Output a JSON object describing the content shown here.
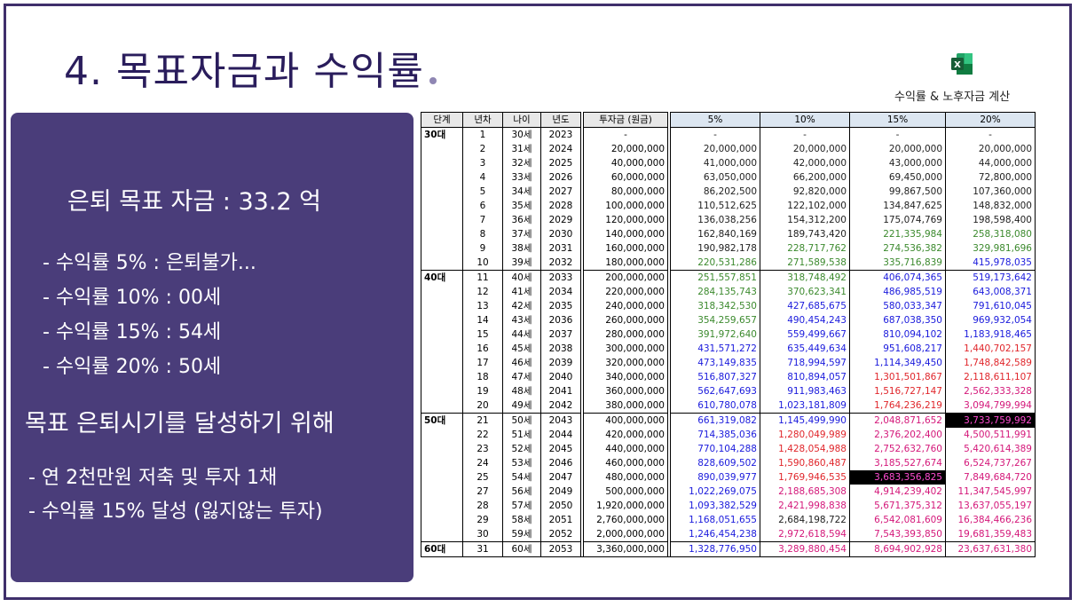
{
  "slide": {
    "title": "4. 목표자금과 수익률",
    "excel_label": "수익률 & 노후자금 계산",
    "excel_icon": "excel-icon",
    "colors": {
      "panel": "#4a3d7a",
      "title": "#2a1d5c",
      "green": "#3c8a2e",
      "blue": "#1a1adc",
      "red": "#e0262b",
      "magenta": "#d4187a"
    }
  },
  "panel": {
    "goal": "은퇴 목표 자금 : 33.2 억",
    "rates": [
      "- 수익률 5% : 은퇴불가...",
      "- 수익률 10% : 00세",
      "- 수익률 15% : 54세",
      "- 수익률 20% : 50세"
    ],
    "condition": "목표 은퇴시기를 달성하기 위해",
    "plans": [
      "- 연 2천만원 저축 및 투자 1채",
      "- 수익률 15% 달성 (잃지않는 투자)"
    ]
  },
  "table": {
    "headers": [
      "단계",
      "년차",
      "나이",
      "년도",
      "투자금 (원금)",
      "5%",
      "10%",
      "15%",
      "20%"
    ],
    "rows": [
      {
        "stage": "30대",
        "year": "1",
        "age": "30세",
        "cal": "2023",
        "principal": "-",
        "r5": "-",
        "r10": "-",
        "r15": "-",
        "r20": "-",
        "c": [
          "k",
          "k",
          "k",
          "k"
        ]
      },
      {
        "stage": "",
        "year": "2",
        "age": "31세",
        "cal": "2024",
        "principal": "20,000,000",
        "r5": "20,000,000",
        "r10": "20,000,000",
        "r15": "20,000,000",
        "r20": "20,000,000",
        "c": [
          "k",
          "k",
          "k",
          "k"
        ]
      },
      {
        "stage": "",
        "year": "3",
        "age": "32세",
        "cal": "2025",
        "principal": "40,000,000",
        "r5": "41,000,000",
        "r10": "42,000,000",
        "r15": "43,000,000",
        "r20": "44,000,000",
        "c": [
          "k",
          "k",
          "k",
          "k"
        ]
      },
      {
        "stage": "",
        "year": "4",
        "age": "33세",
        "cal": "2026",
        "principal": "60,000,000",
        "r5": "63,050,000",
        "r10": "66,200,000",
        "r15": "69,450,000",
        "r20": "72,800,000",
        "c": [
          "k",
          "k",
          "k",
          "k"
        ]
      },
      {
        "stage": "",
        "year": "5",
        "age": "34세",
        "cal": "2027",
        "principal": "80,000,000",
        "r5": "86,202,500",
        "r10": "92,820,000",
        "r15": "99,867,500",
        "r20": "107,360,000",
        "c": [
          "k",
          "k",
          "k",
          "k"
        ]
      },
      {
        "stage": "",
        "year": "6",
        "age": "35세",
        "cal": "2028",
        "principal": "100,000,000",
        "r5": "110,512,625",
        "r10": "122,102,000",
        "r15": "134,847,625",
        "r20": "148,832,000",
        "c": [
          "k",
          "k",
          "k",
          "k"
        ]
      },
      {
        "stage": "",
        "year": "7",
        "age": "36세",
        "cal": "2029",
        "principal": "120,000,000",
        "r5": "136,038,256",
        "r10": "154,312,200",
        "r15": "175,074,769",
        "r20": "198,598,400",
        "c": [
          "k",
          "k",
          "k",
          "k"
        ]
      },
      {
        "stage": "",
        "year": "8",
        "age": "37세",
        "cal": "2030",
        "principal": "140,000,000",
        "r5": "162,840,169",
        "r10": "189,743,420",
        "r15": "221,335,984",
        "r20": "258,318,080",
        "c": [
          "k",
          "k",
          "g",
          "g"
        ]
      },
      {
        "stage": "",
        "year": "9",
        "age": "38세",
        "cal": "2031",
        "principal": "160,000,000",
        "r5": "190,982,178",
        "r10": "228,717,762",
        "r15": "274,536,382",
        "r20": "329,981,696",
        "c": [
          "k",
          "g",
          "g",
          "g"
        ]
      },
      {
        "stage": "",
        "year": "10",
        "age": "39세",
        "cal": "2032",
        "principal": "180,000,000",
        "r5": "220,531,286",
        "r10": "271,589,538",
        "r15": "335,716,839",
        "r20": "415,978,035",
        "c": [
          "g",
          "g",
          "g",
          "b"
        ]
      },
      {
        "stage": "40대",
        "year": "11",
        "age": "40세",
        "cal": "2033",
        "principal": "200,000,000",
        "r5": "251,557,851",
        "r10": "318,748,492",
        "r15": "406,074,365",
        "r20": "519,173,642",
        "c": [
          "g",
          "g",
          "b",
          "b"
        ]
      },
      {
        "stage": "",
        "year": "12",
        "age": "41세",
        "cal": "2034",
        "principal": "220,000,000",
        "r5": "284,135,743",
        "r10": "370,623,341",
        "r15": "486,985,519",
        "r20": "643,008,371",
        "c": [
          "g",
          "g",
          "b",
          "b"
        ]
      },
      {
        "stage": "",
        "year": "13",
        "age": "42세",
        "cal": "2035",
        "principal": "240,000,000",
        "r5": "318,342,530",
        "r10": "427,685,675",
        "r15": "580,033,347",
        "r20": "791,610,045",
        "c": [
          "g",
          "b",
          "b",
          "b"
        ]
      },
      {
        "stage": "",
        "year": "14",
        "age": "43세",
        "cal": "2036",
        "principal": "260,000,000",
        "r5": "354,259,657",
        "r10": "490,454,243",
        "r15": "687,038,350",
        "r20": "969,932,054",
        "c": [
          "g",
          "b",
          "b",
          "b"
        ]
      },
      {
        "stage": "",
        "year": "15",
        "age": "44세",
        "cal": "2037",
        "principal": "280,000,000",
        "r5": "391,972,640",
        "r10": "559,499,667",
        "r15": "810,094,102",
        "r20": "1,183,918,465",
        "c": [
          "g",
          "b",
          "b",
          "b"
        ]
      },
      {
        "stage": "",
        "year": "16",
        "age": "45세",
        "cal": "2038",
        "principal": "300,000,000",
        "r5": "431,571,272",
        "r10": "635,449,634",
        "r15": "951,608,217",
        "r20": "1,440,702,157",
        "c": [
          "b",
          "b",
          "b",
          "rd"
        ]
      },
      {
        "stage": "",
        "year": "17",
        "age": "46세",
        "cal": "2039",
        "principal": "320,000,000",
        "r5": "473,149,835",
        "r10": "718,994,597",
        "r15": "1,114,349,450",
        "r20": "1,748,842,589",
        "c": [
          "b",
          "b",
          "b",
          "rd"
        ]
      },
      {
        "stage": "",
        "year": "18",
        "age": "47세",
        "cal": "2040",
        "principal": "340,000,000",
        "r5": "516,807,327",
        "r10": "810,894,057",
        "r15": "1,301,501,867",
        "r20": "2,118,611,107",
        "c": [
          "b",
          "b",
          "rd",
          "rd"
        ]
      },
      {
        "stage": "",
        "year": "19",
        "age": "48세",
        "cal": "2041",
        "principal": "360,000,000",
        "r5": "562,647,693",
        "r10": "911,983,463",
        "r15": "1,516,727,147",
        "r20": "2,562,333,328",
        "c": [
          "b",
          "b",
          "rd",
          "m"
        ]
      },
      {
        "stage": "",
        "year": "20",
        "age": "49세",
        "cal": "2042",
        "principal": "380,000,000",
        "r5": "610,780,078",
        "r10": "1,023,181,809",
        "r15": "1,764,236,219",
        "r20": "3,094,799,994",
        "c": [
          "b",
          "b",
          "rd",
          "m"
        ]
      },
      {
        "stage": "50대",
        "year": "21",
        "age": "50세",
        "cal": "2043",
        "principal": "400,000,000",
        "r5": "661,319,082",
        "r10": "1,145,499,990",
        "r15": "2,048,871,652",
        "r20": "3,733,759,992",
        "c": [
          "b",
          "b",
          "m",
          "hl"
        ]
      },
      {
        "stage": "",
        "year": "22",
        "age": "51세",
        "cal": "2044",
        "principal": "420,000,000",
        "r5": "714,385,036",
        "r10": "1,280,049,989",
        "r15": "2,376,202,400",
        "r20": "4,500,511,991",
        "c": [
          "b",
          "rd",
          "m",
          "m"
        ]
      },
      {
        "stage": "",
        "year": "23",
        "age": "52세",
        "cal": "2045",
        "principal": "440,000,000",
        "r5": "770,104,288",
        "r10": "1,428,054,988",
        "r15": "2,752,632,760",
        "r20": "5,420,614,389",
        "c": [
          "b",
          "rd",
          "m",
          "m"
        ]
      },
      {
        "stage": "",
        "year": "24",
        "age": "53세",
        "cal": "2046",
        "principal": "460,000,000",
        "r5": "828,609,502",
        "r10": "1,590,860,487",
        "r15": "3,185,527,674",
        "r20": "6,524,737,267",
        "c": [
          "b",
          "rd",
          "m",
          "m"
        ]
      },
      {
        "stage": "",
        "year": "25",
        "age": "54세",
        "cal": "2047",
        "principal": "480,000,000",
        "r5": "890,039,977",
        "r10": "1,769,946,535",
        "r15": "3,683,356,825",
        "r20": "7,849,684,720",
        "c": [
          "b",
          "rd",
          "hl",
          "m"
        ]
      },
      {
        "stage": "",
        "year": "27",
        "age": "56세",
        "cal": "2049",
        "principal": "500,000,000",
        "r5": "1,022,269,075",
        "r10": "2,188,685,308",
        "r15": "4,914,239,402",
        "r20": "11,347,545,997",
        "c": [
          "b",
          "m",
          "m",
          "m"
        ]
      },
      {
        "stage": "",
        "year": "28",
        "age": "57세",
        "cal": "2050",
        "principal": "1,920,000,000",
        "r5": "1,093,382,529",
        "r10": "2,421,998,838",
        "r15": "5,671,375,312",
        "r20": "13,637,055,197",
        "c": [
          "b",
          "m",
          "m",
          "m"
        ]
      },
      {
        "stage": "",
        "year": "29",
        "age": "58세",
        "cal": "2051",
        "principal": "2,760,000,000",
        "r5": "1,168,051,655",
        "r10": "2,684,198,722",
        "r15": "6,542,081,609",
        "r20": "16,384,466,236",
        "c": [
          "b",
          "k",
          "m",
          "m"
        ]
      },
      {
        "stage": "",
        "year": "30",
        "age": "59세",
        "cal": "2052",
        "principal": "2,000,000,000",
        "r5": "1,246,454,238",
        "r10": "2,972,618,594",
        "r15": "7,543,393,850",
        "r20": "19,681,359,483",
        "c": [
          "b",
          "m",
          "m",
          "m"
        ]
      },
      {
        "stage": "60대",
        "year": "31",
        "age": "60세",
        "cal": "2053",
        "principal": "3,360,000,000",
        "r5": "1,328,776,950",
        "r10": "3,289,880,454",
        "r15": "8,694,902,928",
        "r20": "23,637,631,380",
        "c": [
          "b",
          "m",
          "m",
          "m"
        ]
      }
    ]
  }
}
